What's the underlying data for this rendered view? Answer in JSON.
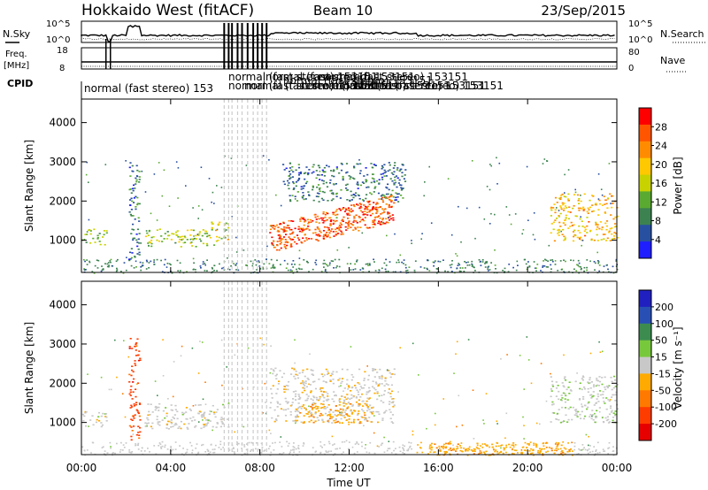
{
  "header": {
    "title": "Hokkaido West (fitACF)",
    "beam": "Beam 10",
    "date": "23/Sep/2015"
  },
  "strips": {
    "nsky_label": "N.Sky",
    "nsearch_label": "N.Search",
    "nsky_ticks": [
      "10^5",
      "10^0"
    ],
    "nsearch_ticks": [
      "10^5",
      "10^0"
    ],
    "freq_label": "Freq.",
    "freq_unit": "[MHz]",
    "freq_ticks": [
      "18",
      "8"
    ],
    "nave_label": "Nave",
    "nave_ticks": [
      "80",
      "0"
    ],
    "cpid_label": "CPID",
    "cpid_text": "normal (fast stereo) 153",
    "cpid_overlap_text": "normal (fast stereo) 153151"
  },
  "axes": {
    "xlabel": "Time UT",
    "ylabel": "Slant Range [km]",
    "x_ticks": [
      "00:00",
      "04:00",
      "08:00",
      "12:00",
      "16:00",
      "20:00",
      "00:00"
    ],
    "y_ticks": [
      "1000",
      "2000",
      "3000",
      "4000"
    ]
  },
  "colorbars": {
    "power_label": "Power [dB]",
    "power_ticks": [
      "28",
      "24",
      "20",
      "16",
      "12",
      "8",
      "4"
    ],
    "power_colors": [
      "#ff0000",
      "#ff5500",
      "#ff8c00",
      "#ffc800",
      "#c8d200",
      "#5aaa32",
      "#3c8250",
      "#2850a0",
      "#1e1eff"
    ],
    "velocity_label": "Velocity [m s⁻¹]",
    "velocity_ticks": [
      "200",
      "100",
      "50",
      "15",
      "-15",
      "-50",
      "-100",
      "-200"
    ],
    "velocity_colors": [
      "#2020c0",
      "#2850b4",
      "#3c8c50",
      "#78c83c",
      "#c8c8c8",
      "#ffaa00",
      "#ff7800",
      "#ff3c00",
      "#e60000"
    ]
  },
  "chart_data": [
    {
      "type": "heatmap",
      "title": "Power",
      "xlabel": "Time UT",
      "ylabel": "Slant Range [km]",
      "xlim": [
        0,
        24
      ],
      "ylim": [
        180,
        4600
      ],
      "colorbar": {
        "label": "Power [dB]",
        "range": [
          0,
          30
        ]
      },
      "features": [
        {
          "t": [
            0.0,
            1.1
          ],
          "range_km": [
            900,
            1300
          ],
          "power_db": 12
        },
        {
          "t": [
            2.1,
            2.6
          ],
          "range_km": [
            500,
            3200
          ],
          "power_db": 6
        },
        {
          "t": [
            2.8,
            5.5
          ],
          "range_km": [
            850,
            1300
          ],
          "power_db": 14
        },
        {
          "t": [
            5.5,
            6.6
          ],
          "range_km": [
            850,
            1500
          ],
          "power_db": 16
        },
        {
          "t": [
            8.4,
            14.0
          ],
          "range_km": [
            1000,
            2400
          ],
          "power_db": 26
        },
        {
          "t": [
            9.0,
            14.5
          ],
          "range_km": [
            2000,
            3000
          ],
          "power_db": 6
        },
        {
          "t": [
            21.0,
            24.0
          ],
          "range_km": [
            1000,
            2200
          ],
          "power_db": 20
        }
      ]
    },
    {
      "type": "heatmap",
      "title": "Velocity",
      "xlabel": "Time UT",
      "ylabel": "Slant Range [km]",
      "xlim": [
        0,
        24
      ],
      "ylim": [
        180,
        4600
      ],
      "colorbar": {
        "label": "Velocity [m s⁻¹]",
        "range": [
          -200,
          200
        ]
      },
      "features": [
        {
          "t": [
            0.0,
            1.1
          ],
          "range_km": [
            900,
            1300
          ],
          "velocity": 0
        },
        {
          "t": [
            2.1,
            2.6
          ],
          "range_km": [
            500,
            3200
          ],
          "velocity": -150
        },
        {
          "t": [
            2.8,
            6.6
          ],
          "range_km": [
            850,
            1500
          ],
          "velocity": 0
        },
        {
          "t": [
            8.4,
            14.0
          ],
          "range_km": [
            1000,
            2400
          ],
          "velocity": -10
        },
        {
          "t": [
            9.5,
            13.0
          ],
          "range_km": [
            1000,
            1500
          ],
          "velocity": -60
        },
        {
          "t": [
            15.5,
            22.0
          ],
          "range_km": [
            180,
            500
          ],
          "velocity": -60
        },
        {
          "t": [
            21.0,
            24.0
          ],
          "range_km": [
            1000,
            2200
          ],
          "velocity": 10
        }
      ]
    }
  ]
}
